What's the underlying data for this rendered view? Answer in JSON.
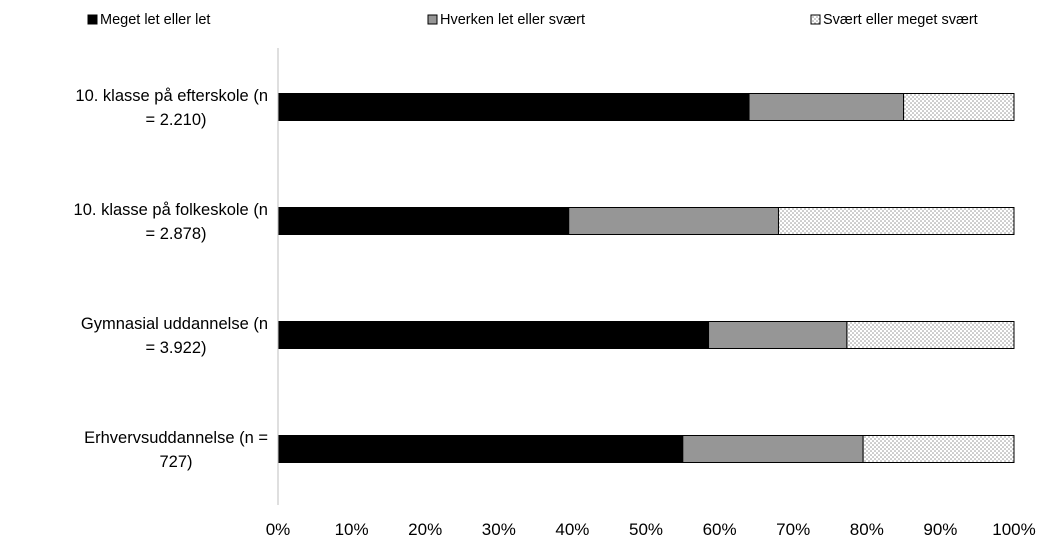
{
  "chart_data": {
    "type": "bar",
    "orientation": "horizontal",
    "stacked": true,
    "percent_axis": true,
    "categories": [
      [
        "10. klasse på efterskole (n",
        "= 2.210)"
      ],
      [
        "10. klasse på folkeskole (n",
        "= 2.878)"
      ],
      [
        "Gymnasial uddannelse (n",
        "= 3.922)"
      ],
      [
        "Erhvervsuddannelse (n =",
        "727)"
      ]
    ],
    "series": [
      {
        "name": "Meget let eller let",
        "values": [
          64,
          39.5,
          58.5,
          55
        ],
        "color": "#000000",
        "pattern": "solid"
      },
      {
        "name": "Hverken let eller svært",
        "values": [
          21,
          28.5,
          18.8,
          24.5
        ],
        "color": "#969696",
        "pattern": "solid"
      },
      {
        "name": "Svært eller meget svært",
        "values": [
          15,
          32,
          22.7,
          20.5
        ],
        "color": "#ffffff",
        "pattern": "dots"
      }
    ],
    "xlim": [
      0,
      100
    ],
    "xticks": [
      "0%",
      "10%",
      "20%",
      "30%",
      "40%",
      "50%",
      "60%",
      "70%",
      "80%",
      "90%",
      "100%"
    ],
    "legend": "top",
    "grid": false
  }
}
